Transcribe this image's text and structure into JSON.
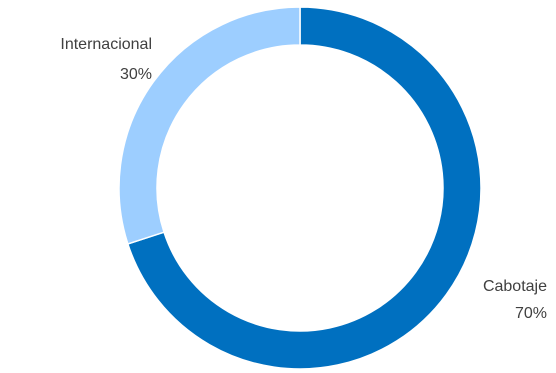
{
  "chart_data": {
    "type": "pie",
    "variant": "donut",
    "title": "",
    "categories": [
      "Cabotaje",
      "Internacional"
    ],
    "values": [
      70,
      30
    ],
    "value_labels": [
      "70%",
      "30%"
    ],
    "colors": [
      "#0070C0",
      "#9DCEFF"
    ],
    "start": "top",
    "direction": "clockwise",
    "legend": "none"
  }
}
